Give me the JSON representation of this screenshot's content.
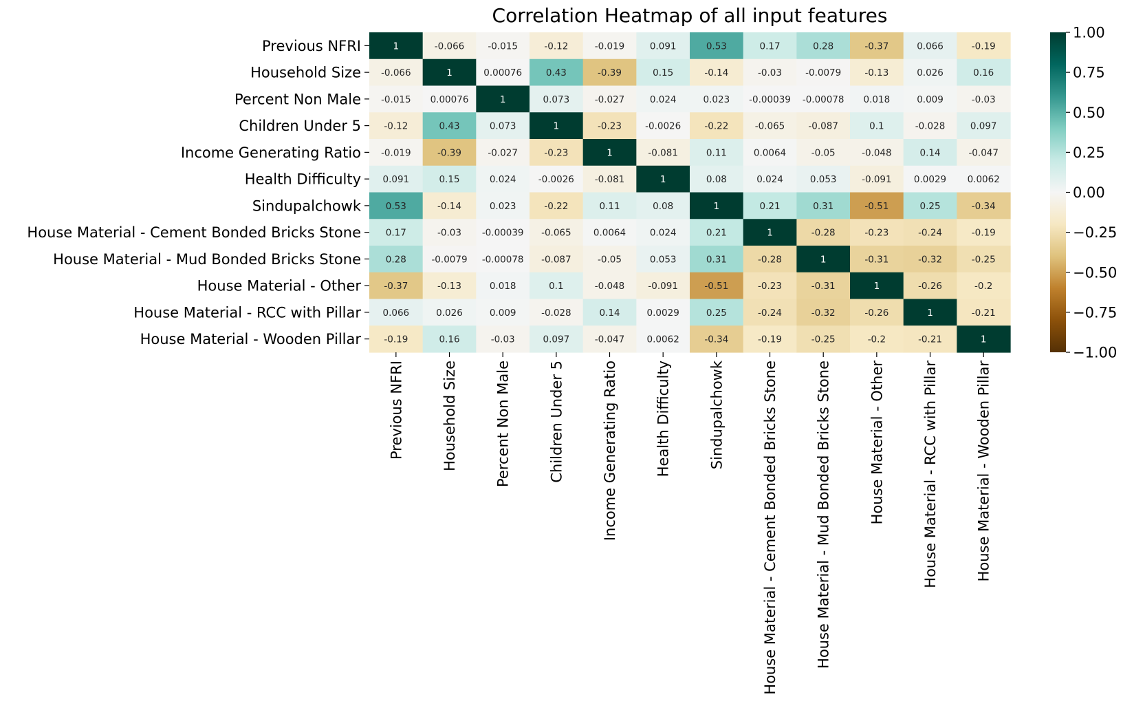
{
  "chart_data": {
    "type": "heatmap",
    "title": "Correlation Heatmap of all input features",
    "rows": [
      "Previous NFRI",
      "Household Size",
      "Percent Non Male",
      "Children Under 5",
      "Income Generating Ratio",
      "Health Difficulty",
      "Sindupalchowk",
      "House Material - Cement Bonded Bricks Stone",
      "House Material - Mud Bonded Bricks Stone",
      "House Material - Other",
      "House Material - RCC with Pillar",
      "House Material - Wooden Pillar"
    ],
    "columns": [
      "Previous NFRI",
      "Household Size",
      "Percent Non Male",
      "Children Under 5",
      "Income Generating Ratio",
      "Health Difficulty",
      "Sindupalchowk",
      "House Material - Cement Bonded Bricks Stone",
      "House Material - Mud Bonded Bricks Stone",
      "House Material - Other",
      "House Material - RCC with Pillar",
      "House Material - Wooden Pillar"
    ],
    "labels": [
      [
        "1",
        "-0.066",
        "-0.015",
        "-0.12",
        "-0.019",
        "0.091",
        "0.53",
        "0.17",
        "0.28",
        "-0.37",
        "0.066",
        "-0.19"
      ],
      [
        "-0.066",
        "1",
        "0.00076",
        "0.43",
        "-0.39",
        "0.15",
        "-0.14",
        "-0.03",
        "-0.0079",
        "-0.13",
        "0.026",
        "0.16"
      ],
      [
        "-0.015",
        "0.00076",
        "1",
        "0.073",
        "-0.027",
        "0.024",
        "0.023",
        "-0.00039",
        "-0.00078",
        "0.018",
        "0.009",
        "-0.03"
      ],
      [
        "-0.12",
        "0.43",
        "0.073",
        "1",
        "-0.23",
        "-0.0026",
        "-0.22",
        "-0.065",
        "-0.087",
        "0.1",
        "-0.028",
        "0.097"
      ],
      [
        "-0.019",
        "-0.39",
        "-0.027",
        "-0.23",
        "1",
        "-0.081",
        "0.11",
        "0.0064",
        "-0.05",
        "-0.048",
        "0.14",
        "-0.047"
      ],
      [
        "0.091",
        "0.15",
        "0.024",
        "-0.0026",
        "-0.081",
        "1",
        "0.08",
        "0.024",
        "0.053",
        "-0.091",
        "0.0029",
        "0.0062"
      ],
      [
        "0.53",
        "-0.14",
        "0.023",
        "-0.22",
        "0.11",
        "0.08",
        "1",
        "0.21",
        "0.31",
        "-0.51",
        "0.25",
        "-0.34"
      ],
      [
        "0.17",
        "-0.03",
        "-0.00039",
        "-0.065",
        "0.0064",
        "0.024",
        "0.21",
        "1",
        "-0.28",
        "-0.23",
        "-0.24",
        "-0.19"
      ],
      [
        "0.28",
        "-0.0079",
        "-0.00078",
        "-0.087",
        "-0.05",
        "0.053",
        "0.31",
        "-0.28",
        "1",
        "-0.31",
        "-0.32",
        "-0.25"
      ],
      [
        "-0.37",
        "-0.13",
        "0.018",
        "0.1",
        "-0.048",
        "-0.091",
        "-0.51",
        "-0.23",
        "-0.31",
        "1",
        "-0.26",
        "-0.2"
      ],
      [
        "0.066",
        "0.026",
        "0.009",
        "-0.028",
        "0.14",
        "0.0029",
        "0.25",
        "-0.24",
        "-0.32",
        "-0.26",
        "1",
        "-0.21"
      ],
      [
        "-0.19",
        "0.16",
        "-0.03",
        "0.097",
        "-0.047",
        "0.0062",
        "-0.34",
        "-0.19",
        "-0.25",
        "-0.2",
        "-0.21",
        "1"
      ]
    ],
    "vmin": -1,
    "vmax": 1,
    "colormap": "BrBG",
    "colormap_stops": [
      "#543005",
      "#8c510a",
      "#bf812d",
      "#dfc27d",
      "#f6e8c3",
      "#f5f5f5",
      "#c7eae5",
      "#80cdc1",
      "#35978f",
      "#01665e",
      "#003c30"
    ],
    "colorbar_ticks": [
      "1.00",
      "0.75",
      "0.50",
      "0.25",
      "0.00",
      "−0.25",
      "−0.50",
      "−0.75",
      "−1.00"
    ],
    "colorbar_tick_values": [
      1,
      0.75,
      0.5,
      0.25,
      0,
      -0.25,
      -0.5,
      -0.75,
      -1
    ],
    "xlabel": "",
    "ylabel": ""
  }
}
